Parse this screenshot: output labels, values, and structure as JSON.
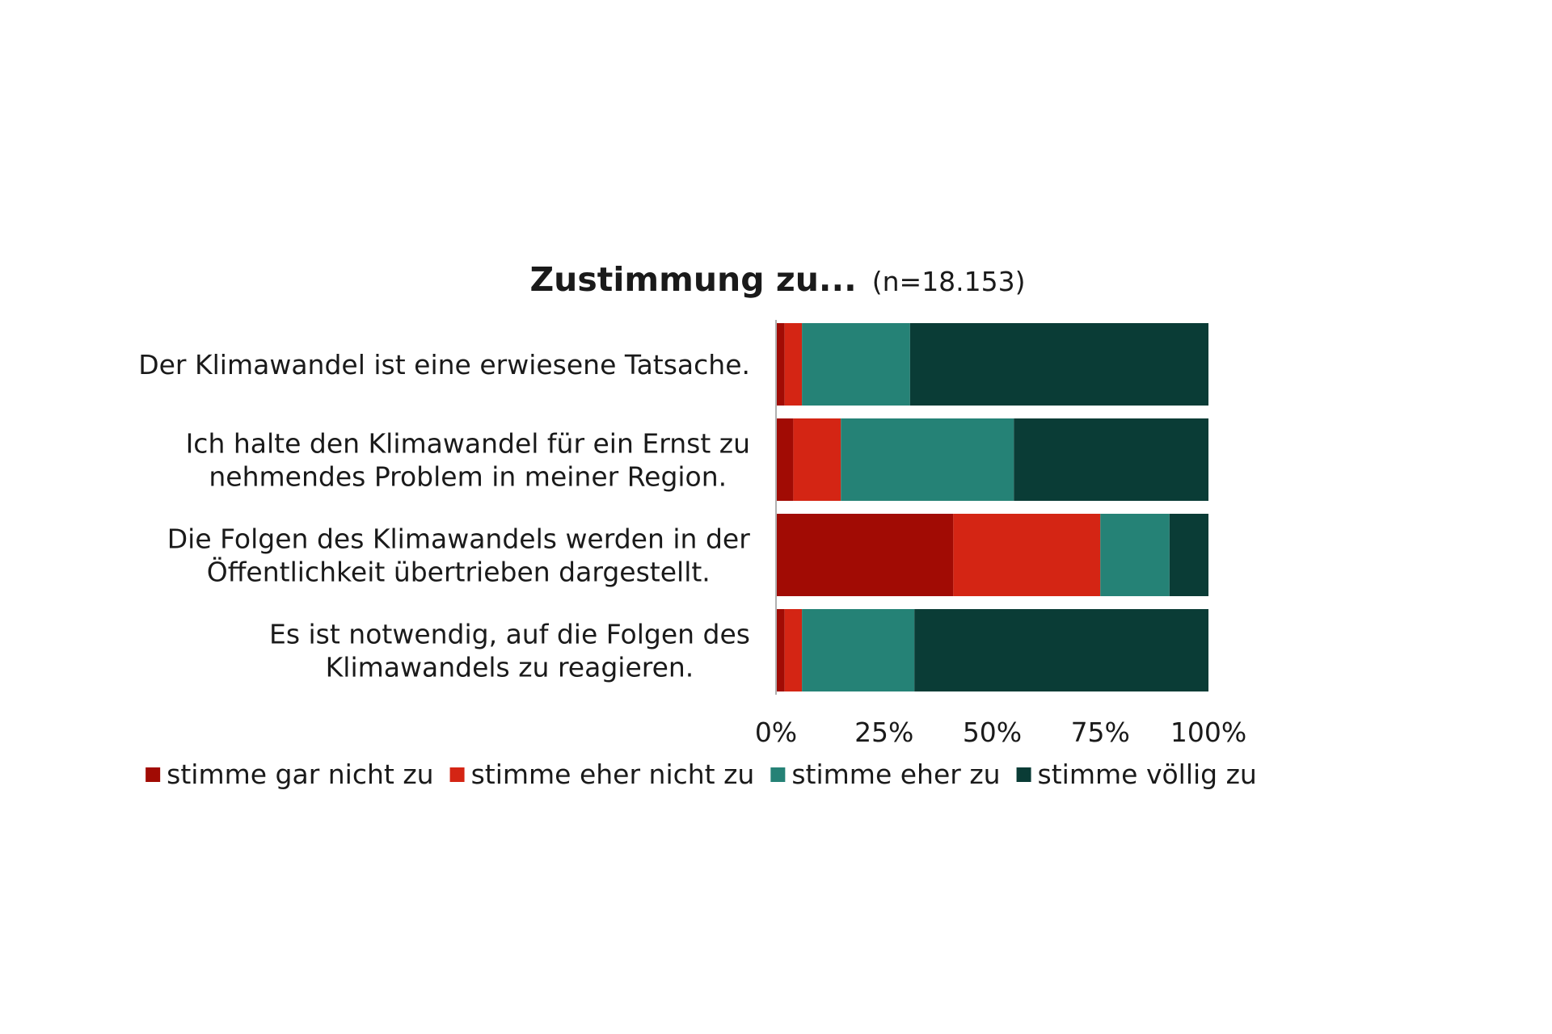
{
  "chart_data": {
    "type": "bar",
    "orientation": "horizontal",
    "stacked": true,
    "title": "Zustimmung zu...",
    "subtitle": "(n=18.153)",
    "categories": [
      [
        "Der Klimawandel ist eine erwiesene Tatsache."
      ],
      [
        "Ich halte den Klimawandel für ein Ernst zu",
        "nehmendes Problem in meiner Region."
      ],
      [
        "Die Folgen des Klimawandels werden in der",
        "Öffentlichkeit übertrieben dargestellt."
      ],
      [
        "Es ist notwendig, auf die Folgen des",
        "Klimawandels zu reagieren."
      ]
    ],
    "series": [
      {
        "name": "stimme gar nicht zu",
        "color": "#a10b04",
        "values": [
          2,
          4,
          41,
          2
        ]
      },
      {
        "name": "stimme eher nicht zu",
        "color": "#d42514",
        "values": [
          4,
          11,
          34,
          4
        ]
      },
      {
        "name": "stimme eher zu",
        "color": "#258276",
        "values": [
          25,
          40,
          16,
          26
        ]
      },
      {
        "name": "stimme völlig zu",
        "color": "#0a3c36",
        "values": [
          69,
          45,
          9,
          68
        ]
      }
    ],
    "xlim": [
      0,
      100
    ],
    "xticks": [
      "0%",
      "25%",
      "50%",
      "75%",
      "100%"
    ],
    "legend_position": "bottom",
    "grid": false
  }
}
